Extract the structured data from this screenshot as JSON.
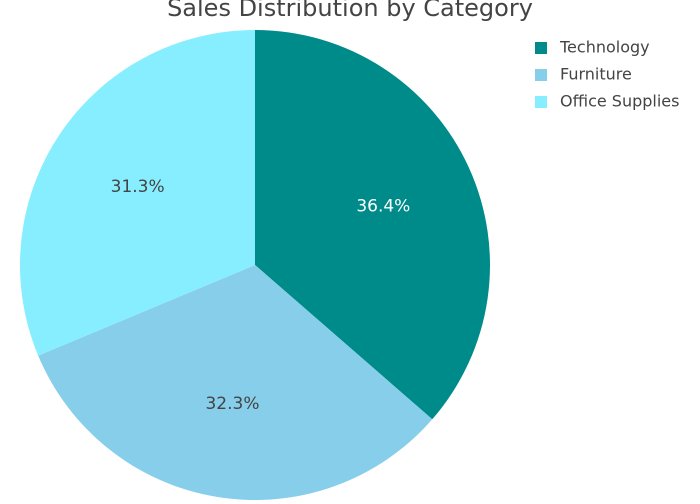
{
  "chart_data": {
    "type": "pie",
    "title": "Sales Distribution by Category",
    "categories": [
      "Technology",
      "Furniture",
      "Office Supplies"
    ],
    "values": [
      36.4,
      32.3,
      31.3
    ],
    "labels": [
      "36.4%",
      "32.3%",
      "31.3%"
    ],
    "colors": [
      "#008B8B",
      "#87CEEB",
      "#87EEFF"
    ],
    "label_colors": [
      "#ffffff",
      "#444444",
      "#444444"
    ],
    "legend": {
      "position": "top-right",
      "entries": [
        "Technology",
        "Furniture",
        "Office Supplies"
      ]
    }
  }
}
